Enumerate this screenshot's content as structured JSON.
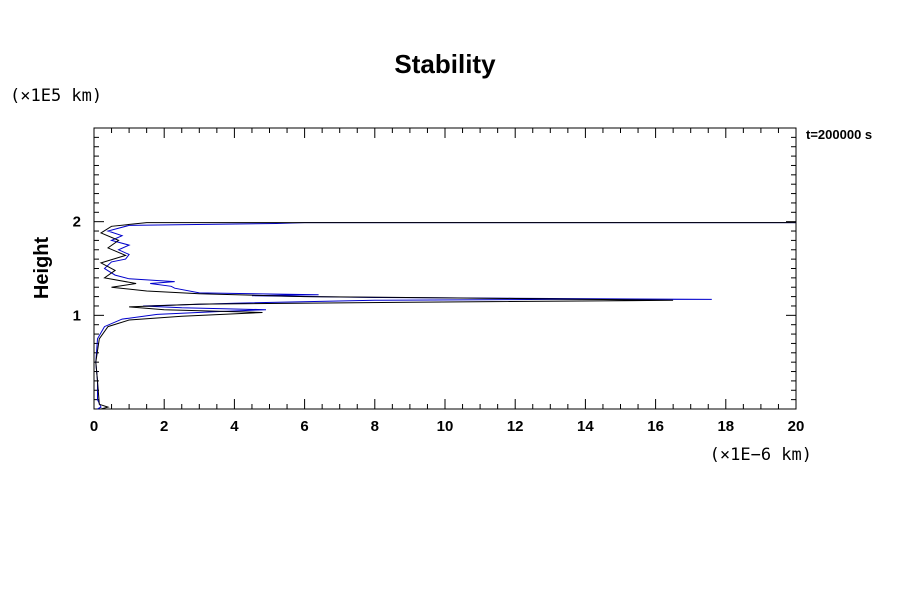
{
  "chart_data": {
    "type": "line",
    "title": "Stability",
    "xlabel": "",
    "ylabel": "Height",
    "x_unit_label": "(×1E−6 km)",
    "y_unit_label": "(×1E5 km)",
    "annotation": "t=200000 s",
    "xlim": [
      0,
      20
    ],
    "ylim": [
      0,
      3
    ],
    "x_ticks": [
      0,
      2,
      4,
      6,
      8,
      10,
      12,
      14,
      16,
      18,
      20
    ],
    "y_ticks": [
      1,
      2
    ],
    "grid": false,
    "colors": {
      "series_a": "#0000cc",
      "series_b": "#000000"
    },
    "series": [
      {
        "color": "#0000cc",
        "points": [
          [
            0.1,
            0
          ],
          [
            0.2,
            0.02
          ],
          [
            0.1,
            0.1
          ],
          [
            0.1,
            0.3
          ],
          [
            0.05,
            0.5
          ],
          [
            0.1,
            0.75
          ],
          [
            0.3,
            0.88
          ],
          [
            0.8,
            0.96
          ],
          [
            1.8,
            1.01
          ],
          [
            3.5,
            1.04
          ],
          [
            4.9,
            1.06
          ],
          [
            2.5,
            1.08
          ],
          [
            1.4,
            1.1
          ],
          [
            4.0,
            1.13
          ],
          [
            8.0,
            1.16
          ],
          [
            13.0,
            1.17
          ],
          [
            17.6,
            1.17
          ],
          [
            13.0,
            1.18
          ],
          [
            8.0,
            1.19
          ],
          [
            4.5,
            1.21
          ],
          [
            6.4,
            1.22
          ],
          [
            3.0,
            1.24
          ],
          [
            2.3,
            1.29
          ],
          [
            2.2,
            1.31
          ],
          [
            1.6,
            1.34
          ],
          [
            2.3,
            1.36
          ],
          [
            1.0,
            1.39
          ],
          [
            0.6,
            1.43
          ],
          [
            0.3,
            1.5
          ],
          [
            0.5,
            1.57
          ],
          [
            0.9,
            1.6
          ],
          [
            1.0,
            1.65
          ],
          [
            0.7,
            1.7
          ],
          [
            1.0,
            1.75
          ],
          [
            0.5,
            1.8
          ],
          [
            0.8,
            1.85
          ],
          [
            0.4,
            1.9
          ],
          [
            1.0,
            1.96
          ],
          [
            5.2,
            1.98
          ],
          [
            6.0,
            1.99
          ],
          [
            20.0,
            1.99
          ]
        ]
      },
      {
        "color": "#000000",
        "points": [
          [
            0.2,
            0
          ],
          [
            0.4,
            0.02
          ],
          [
            0.15,
            0.05
          ],
          [
            0.1,
            0.3
          ],
          [
            0.05,
            0.5
          ],
          [
            0.15,
            0.75
          ],
          [
            0.4,
            0.88
          ],
          [
            1.0,
            0.95
          ],
          [
            2.5,
            0.99
          ],
          [
            4.8,
            1.03
          ],
          [
            2.0,
            1.06
          ],
          [
            1.0,
            1.09
          ],
          [
            3.0,
            1.12
          ],
          [
            9.0,
            1.14
          ],
          [
            16.5,
            1.16
          ],
          [
            12.0,
            1.18
          ],
          [
            6.0,
            1.2
          ],
          [
            3.0,
            1.23
          ],
          [
            1.5,
            1.26
          ],
          [
            0.5,
            1.3
          ],
          [
            1.2,
            1.34
          ],
          [
            0.3,
            1.4
          ],
          [
            0.6,
            1.48
          ],
          [
            0.2,
            1.56
          ],
          [
            0.9,
            1.64
          ],
          [
            0.4,
            1.72
          ],
          [
            0.7,
            1.8
          ],
          [
            0.2,
            1.88
          ],
          [
            0.5,
            1.95
          ],
          [
            1.5,
            1.99
          ],
          [
            20.0,
            1.99
          ]
        ]
      }
    ]
  }
}
